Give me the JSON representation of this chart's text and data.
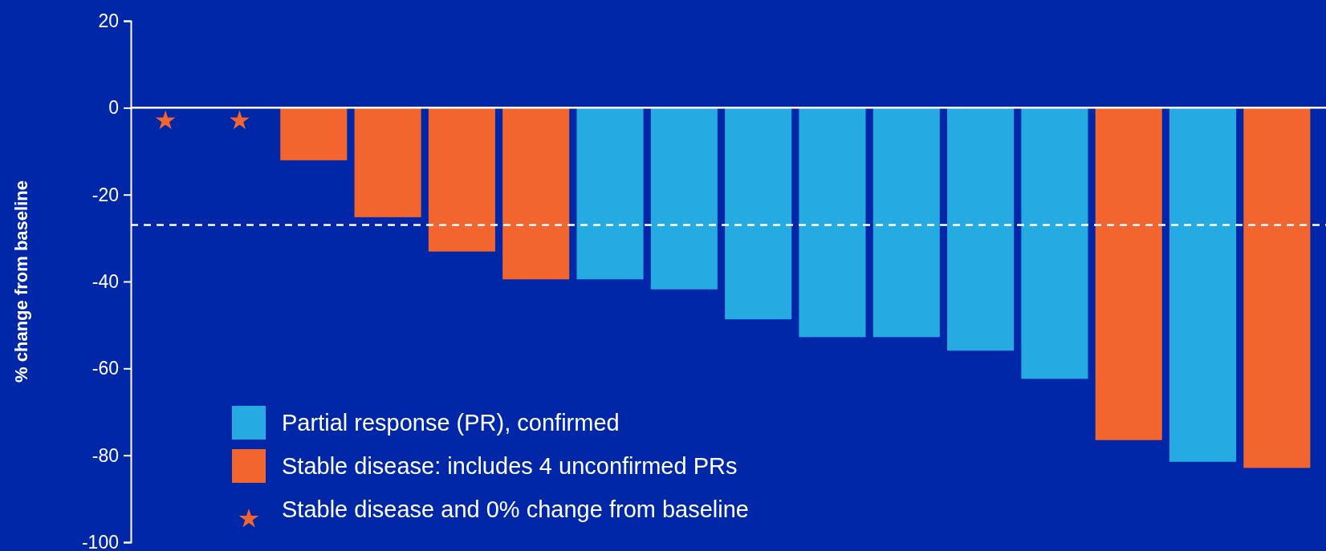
{
  "chart_data": {
    "type": "bar",
    "ylabel": "% change from baseline",
    "categories": [
      null,
      null,
      null,
      null,
      null,
      null,
      null,
      null,
      null,
      null,
      null,
      null,
      null,
      null,
      null,
      null
    ],
    "series": [
      {
        "name": "Partial response (PR), confirmed",
        "color": "#25aae2",
        "values": [
          null,
          null,
          null,
          null,
          null,
          null,
          -39.5,
          -41.8,
          -48.7,
          -52.8,
          -52.8,
          -55.9,
          -62.4,
          null,
          -81.5,
          null
        ]
      },
      {
        "name": "Stable disease: includes 4 unconfirmed PRs",
        "color": "#f2652f",
        "values": [
          null,
          null,
          -12.1,
          -25.2,
          -33.1,
          -39.5,
          null,
          null,
          null,
          null,
          null,
          null,
          null,
          -76.5,
          null,
          -82.9
        ]
      },
      {
        "name": "Stable disease and 0% change from baseline",
        "type": "scatter",
        "marker": "star",
        "color": "#f2652f",
        "values": [
          -3,
          -3,
          null,
          null,
          null,
          null,
          null,
          null,
          null,
          null,
          null,
          null,
          null,
          null,
          null,
          null
        ]
      }
    ],
    "ylim": [
      -100,
      20
    ],
    "yticks": [
      -100,
      -80,
      -60,
      -40,
      -20,
      0,
      20
    ],
    "tick_labels": "y",
    "legend": "bottom left",
    "ref_lines": [
      {
        "axis": "y",
        "value": -27,
        "color": "#ffffff",
        "line_style": "dashed"
      }
    ]
  }
}
